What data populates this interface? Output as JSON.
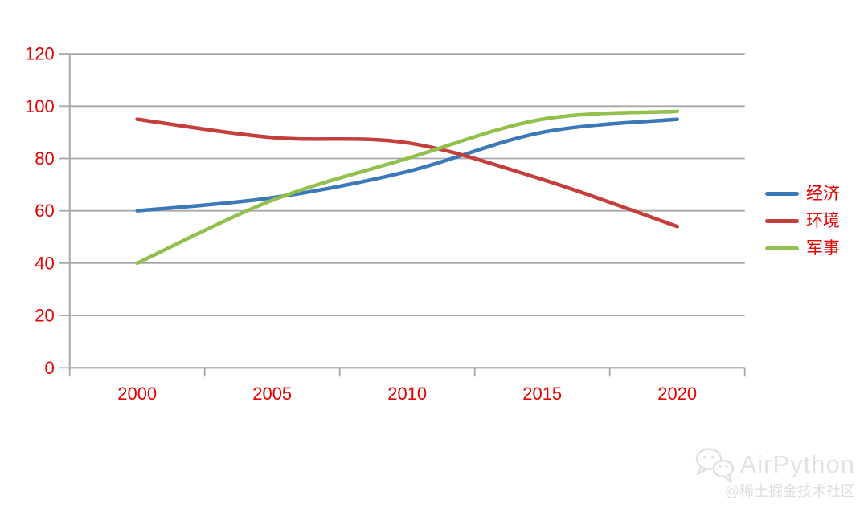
{
  "chart_data": {
    "type": "line",
    "title": "",
    "xlabel": "",
    "ylabel": "",
    "categories": [
      "2000",
      "2005",
      "2010",
      "2015",
      "2020"
    ],
    "series": [
      {
        "id": "economy",
        "name": "经济",
        "color": "#3b78b7",
        "values": [
          60,
          65,
          75,
          90,
          95
        ]
      },
      {
        "id": "environment",
        "name": "环境",
        "color": "#c43e3c",
        "values": [
          95,
          88,
          86,
          72,
          54
        ]
      },
      {
        "id": "military",
        "name": "军事",
        "color": "#92c04c",
        "values": [
          40,
          64,
          80,
          95,
          98
        ]
      }
    ],
    "yticks": [
      0,
      20,
      40,
      60,
      80,
      100,
      120
    ],
    "ylim": [
      0,
      120
    ],
    "grid": true,
    "smooth": true,
    "legend_position": "right",
    "legend_marker": "line",
    "axis_label_color": "#e60000",
    "grid_color": "#a8a8a8",
    "background_color": "#ffffff"
  },
  "watermark": {
    "brand": "AirPython",
    "community": "@稀土掘金技术社区",
    "icon": "wechat-icon",
    "color": "#e2e2e2"
  }
}
